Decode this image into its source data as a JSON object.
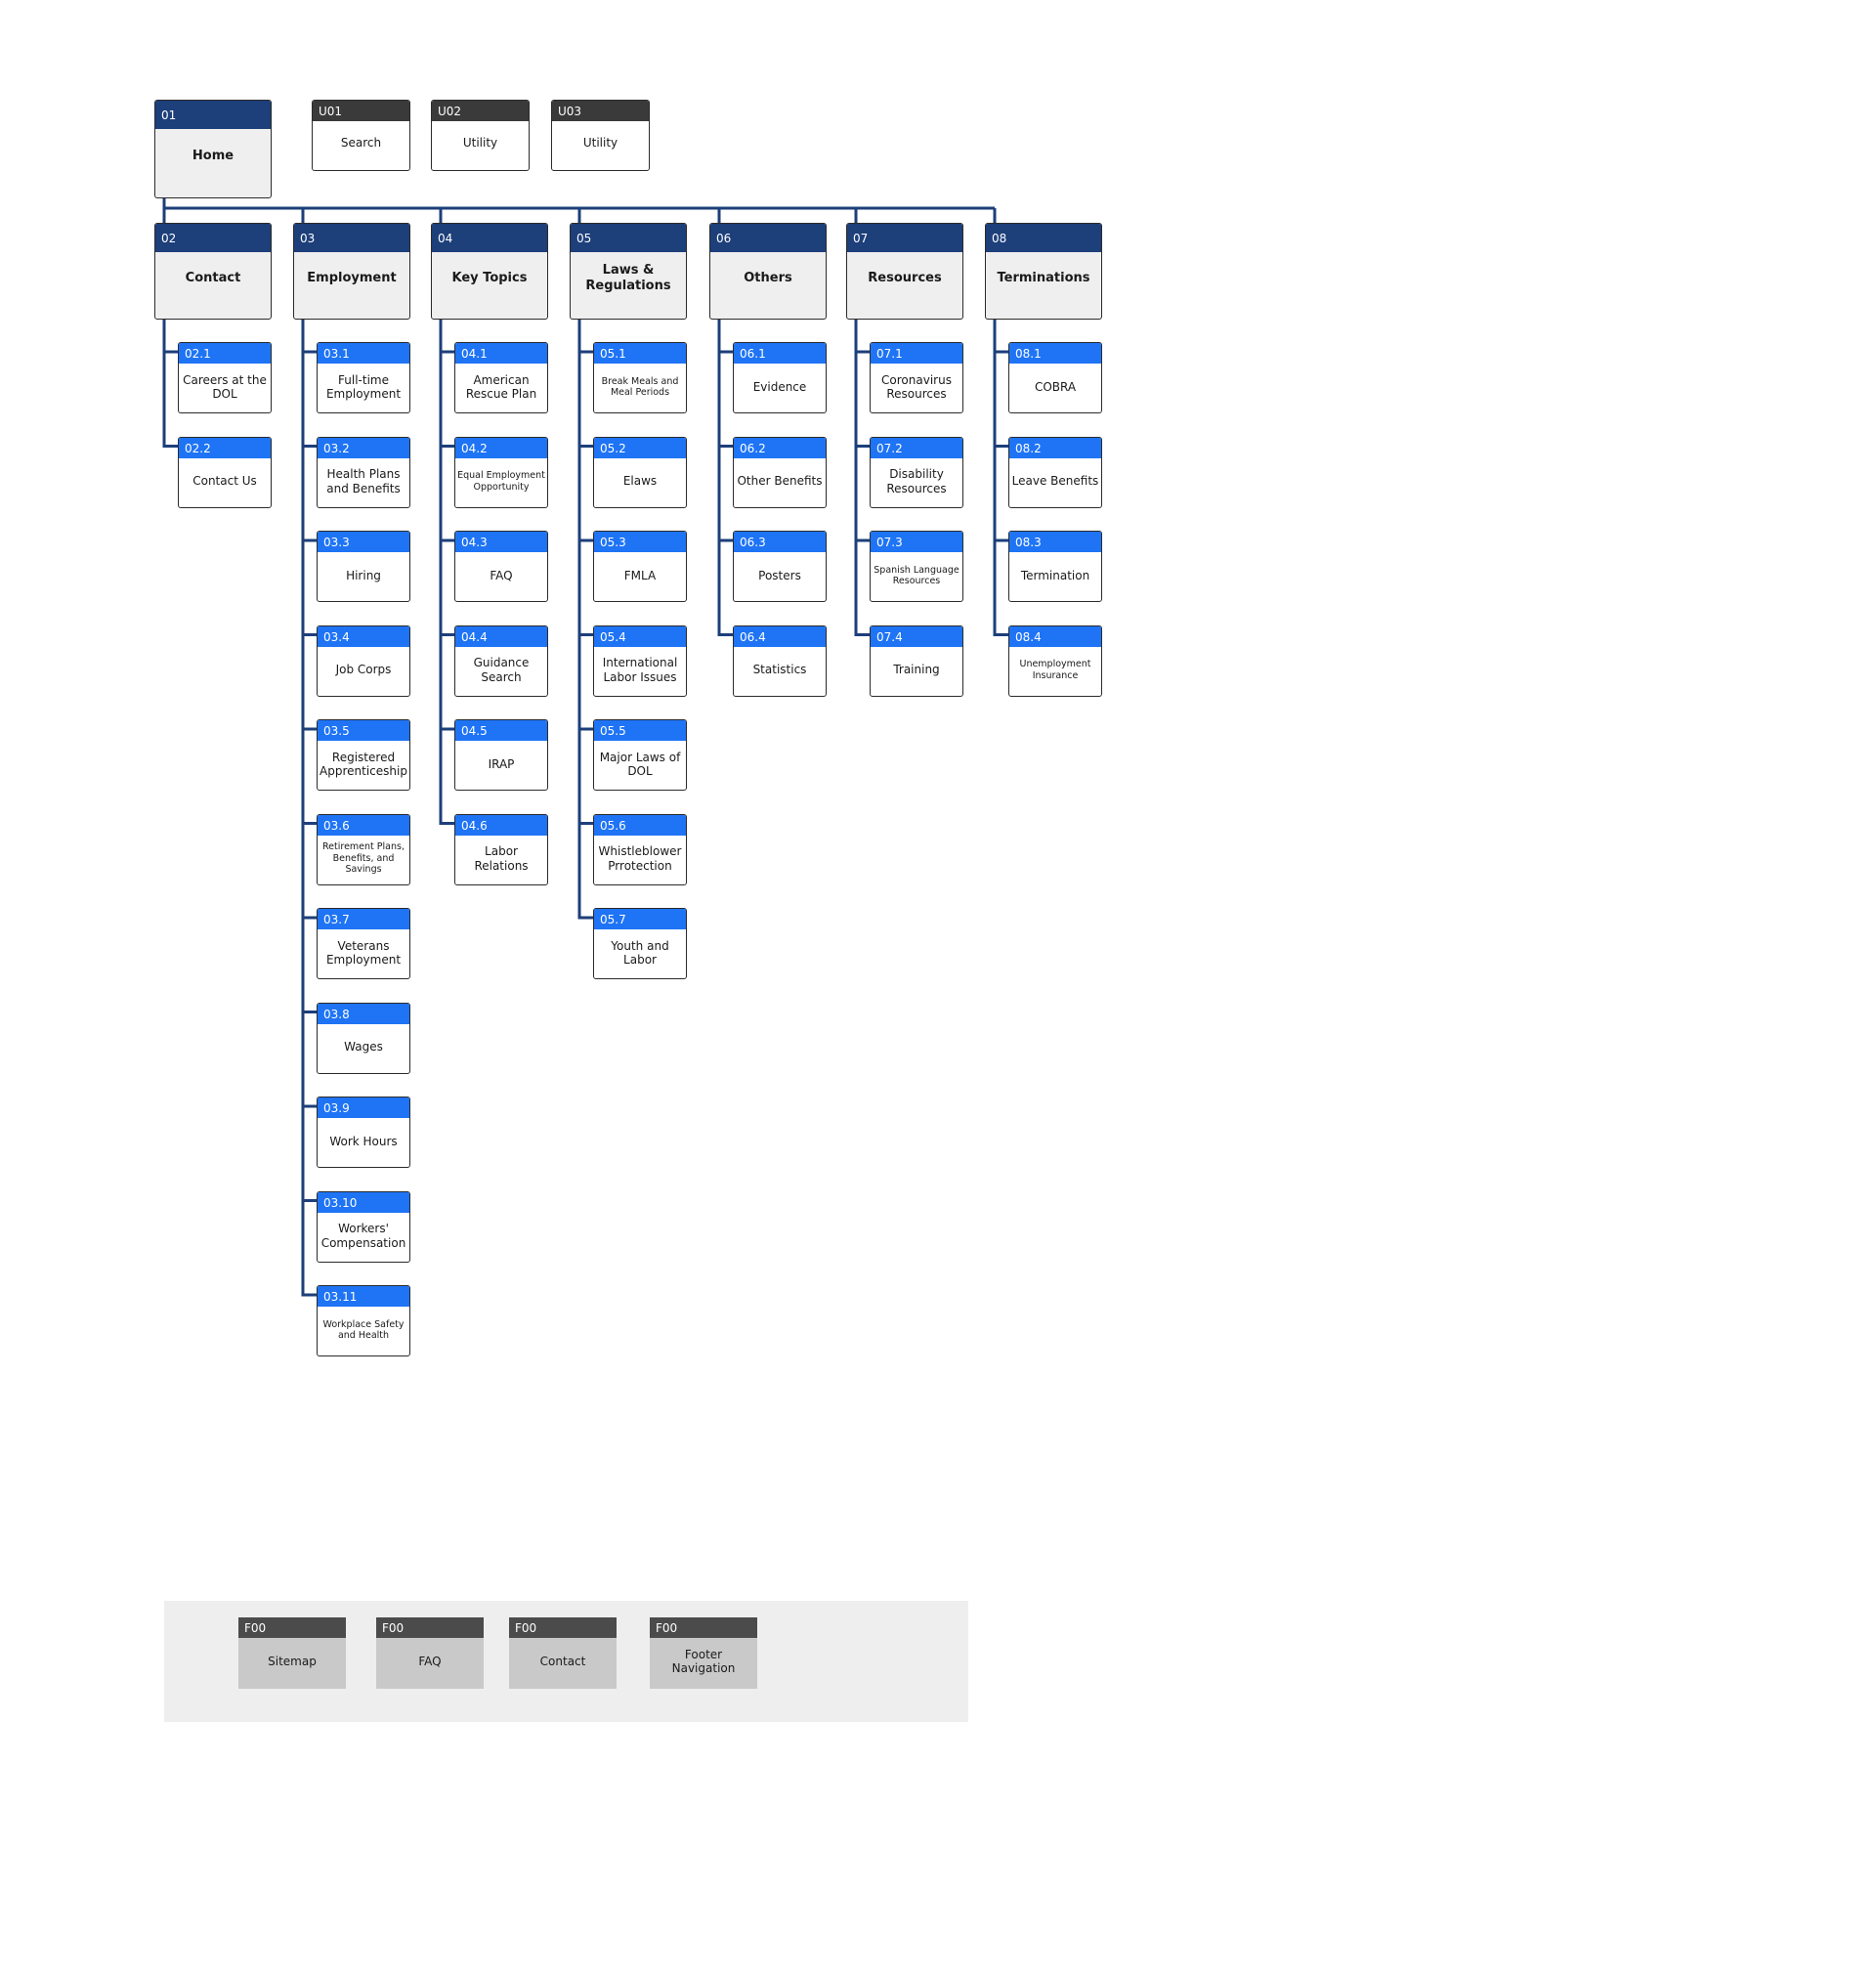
{
  "home": {
    "id": "01",
    "label": "Home"
  },
  "utilities": [
    {
      "id": "U01",
      "label": "Search"
    },
    {
      "id": "U02",
      "label": "Utility"
    },
    {
      "id": "U03",
      "label": "Utility"
    }
  ],
  "sections": [
    {
      "id": "02",
      "label": "Contact",
      "children": [
        {
          "id": "02.1",
          "label": "Careers at the DOL"
        },
        {
          "id": "02.2",
          "label": "Contact Us"
        }
      ]
    },
    {
      "id": "03",
      "label": "Employment",
      "children": [
        {
          "id": "03.1",
          "label": "Full-time Employment"
        },
        {
          "id": "03.2",
          "label": "Health Plans and Benefits"
        },
        {
          "id": "03.3",
          "label": "Hiring"
        },
        {
          "id": "03.4",
          "label": "Job Corps"
        },
        {
          "id": "03.5",
          "label": "Registered Apprenticeship"
        },
        {
          "id": "03.6",
          "label": "Retirement Plans, Benefits, and Savings"
        },
        {
          "id": "03.7",
          "label": "Veterans Employment"
        },
        {
          "id": "03.8",
          "label": "Wages"
        },
        {
          "id": "03.9",
          "label": "Work Hours"
        },
        {
          "id": "03.10",
          "label": "Workers' Compensation"
        },
        {
          "id": "03.11",
          "label": "Workplace Safety and Health"
        }
      ]
    },
    {
      "id": "04",
      "label": "Key Topics",
      "children": [
        {
          "id": "04.1",
          "label": "American Rescue Plan"
        },
        {
          "id": "04.2",
          "label": "Equal Employment Opportunity"
        },
        {
          "id": "04.3",
          "label": "FAQ"
        },
        {
          "id": "04.4",
          "label": "Guidance Search"
        },
        {
          "id": "04.5",
          "label": "IRAP"
        },
        {
          "id": "04.6",
          "label": "Labor Relations"
        }
      ]
    },
    {
      "id": "05",
      "label": "Laws & Regulations",
      "children": [
        {
          "id": "05.1",
          "label": "Break Meals and Meal Periods"
        },
        {
          "id": "05.2",
          "label": "Elaws"
        },
        {
          "id": "05.3",
          "label": "FMLA"
        },
        {
          "id": "05.4",
          "label": "International Labor Issues"
        },
        {
          "id": "05.5",
          "label": "Major Laws of DOL"
        },
        {
          "id": "05.6",
          "label": "Whistleblower Prrotection"
        },
        {
          "id": "05.7",
          "label": "Youth and Labor"
        }
      ]
    },
    {
      "id": "06",
      "label": "Others",
      "children": [
        {
          "id": "06.1",
          "label": "Evidence"
        },
        {
          "id": "06.2",
          "label": "Other Benefits"
        },
        {
          "id": "06.3",
          "label": "Posters"
        },
        {
          "id": "06.4",
          "label": "Statistics"
        }
      ]
    },
    {
      "id": "07",
      "label": "Resources",
      "children": [
        {
          "id": "07.1",
          "label": "Coronavirus Resources"
        },
        {
          "id": "07.2",
          "label": "Disability Resources"
        },
        {
          "id": "07.3",
          "label": "Spanish Language Resources"
        },
        {
          "id": "07.4",
          "label": "Training"
        }
      ]
    },
    {
      "id": "08",
      "label": "Terminations",
      "children": [
        {
          "id": "08.1",
          "label": "COBRA"
        },
        {
          "id": "08.2",
          "label": "Leave Benefits"
        },
        {
          "id": "08.3",
          "label": "Termination"
        },
        {
          "id": "08.4",
          "label": "Unemployment Insurance"
        }
      ]
    }
  ],
  "footer": [
    {
      "id": "F00",
      "label": "Sitemap"
    },
    {
      "id": "F00",
      "label": "FAQ"
    },
    {
      "id": "F00",
      "label": "Contact"
    },
    {
      "id": "F00",
      "label": "Footer Navigation"
    }
  ],
  "colors": {
    "top_header": "#1d3f7a",
    "sub_header": "#1e74f5",
    "utility_header": "#3a3a3a",
    "footer_header": "#4b4b4b",
    "connector": "#1d3f7a"
  }
}
